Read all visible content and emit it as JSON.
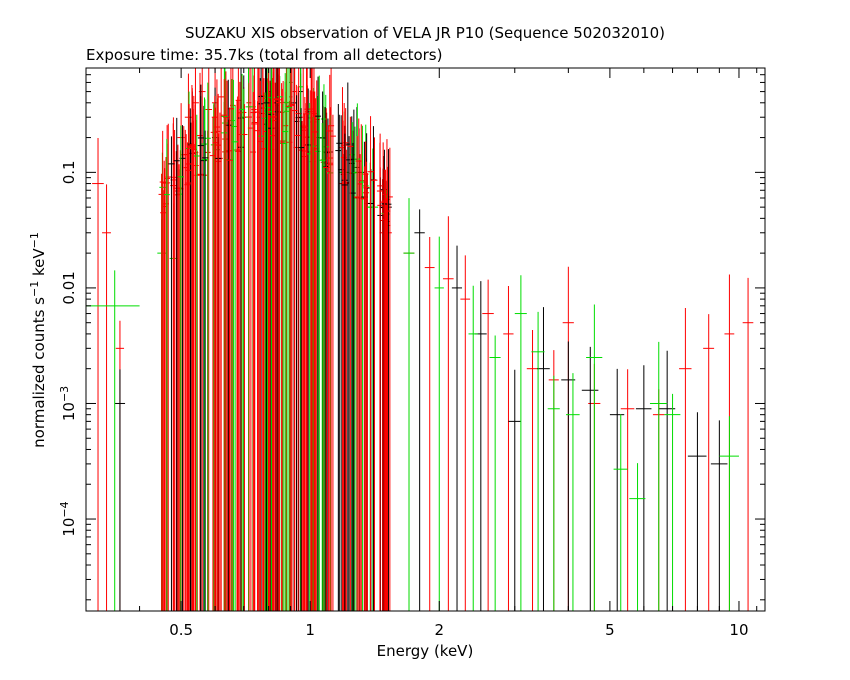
{
  "chart_data": {
    "type": "scatter",
    "title": "SUZAKU XIS observation of VELA JR P10 (Sequence 502032010)",
    "subtitle": "Exposure time: 35.7ks (total from all detectors)",
    "xlabel": "Energy (keV)",
    "ylabel_parts": {
      "base": "normalized counts s",
      "exp1": "−1",
      "mid": " keV",
      "exp2": "−1"
    },
    "x_scale": "log",
    "y_scale": "log",
    "xlim": [
      0.3,
      11.5
    ],
    "ylim": [
      1.6e-05,
      0.8
    ],
    "x_ticks": [
      {
        "value": 0.5,
        "label": "0.5"
      },
      {
        "value": 1,
        "label": "1"
      },
      {
        "value": 2,
        "label": "2"
      },
      {
        "value": 5,
        "label": "5"
      },
      {
        "value": 10,
        "label": "10"
      }
    ],
    "y_ticks": [
      {
        "value": 0.1,
        "base": "0.1",
        "exp": ""
      },
      {
        "value": 0.01,
        "base": "0.01",
        "exp": ""
      },
      {
        "value": 0.001,
        "base": "10",
        "exp": "−3"
      },
      {
        "value": 0.0001,
        "base": "10",
        "exp": "−4"
      }
    ],
    "legend": "none",
    "grid": false,
    "series": [
      {
        "color": "#ff0000",
        "x": [
          0.32,
          0.335,
          0.36,
          0.5,
          0.52,
          0.54,
          0.56,
          0.58,
          0.6,
          0.62,
          0.64,
          0.66,
          0.68,
          0.7,
          0.72,
          0.74,
          0.76,
          0.78,
          0.8,
          0.82,
          0.84,
          0.86,
          0.88,
          0.9,
          0.92,
          0.95,
          1.0,
          1.1,
          1.2,
          1.3,
          1.5,
          1.7,
          1.9,
          2.1,
          2.3,
          2.6,
          2.9,
          3.3,
          3.7,
          4.0,
          4.6,
          5.5,
          6.5,
          7.5,
          8.5,
          9.5,
          10.5
        ],
        "y": [
          0.08,
          0.03,
          0.003,
          0.2,
          0.3,
          0.4,
          0.5,
          0.35,
          0.4,
          0.45,
          0.3,
          0.38,
          0.42,
          0.33,
          0.4,
          0.35,
          0.3,
          0.36,
          0.42,
          0.3,
          0.38,
          0.33,
          0.4,
          0.45,
          0.5,
          0.3,
          0.15,
          0.12,
          0.08,
          0.06,
          0.03,
          0.02,
          0.015,
          0.012,
          0.008,
          0.006,
          0.004,
          0.002,
          0.0016,
          0.005,
          0.001,
          0.0009,
          0.0008,
          0.002,
          0.003,
          0.004,
          0.005
        ],
        "xerr": [
          0.01,
          0.008,
          0.008,
          0.01,
          0.01,
          0.01,
          0.01,
          0.01,
          0.01,
          0.01,
          0.01,
          0.01,
          0.01,
          0.01,
          0.01,
          0.01,
          0.01,
          0.01,
          0.01,
          0.01,
          0.01,
          0.01,
          0.01,
          0.01,
          0.01,
          0.015,
          0.02,
          0.03,
          0.03,
          0.04,
          0.05,
          0.05,
          0.05,
          0.06,
          0.06,
          0.08,
          0.08,
          0.1,
          0.1,
          0.12,
          0.15,
          0.2,
          0.2,
          0.25,
          0.25,
          0.25,
          0.3
        ]
      },
      {
        "color": "#000000",
        "x": [
          0.36,
          0.6,
          0.7,
          0.8,
          0.9,
          0.95,
          1.1,
          1.3,
          1.5,
          1.8,
          2.2,
          2.5,
          3.0,
          3.5,
          4.0,
          4.5,
          5.2,
          6.0,
          6.8,
          8.0,
          9.0
        ],
        "y": [
          0.001,
          0.2,
          0.3,
          0.5,
          0.6,
          0.5,
          0.15,
          0.1,
          0.05,
          0.03,
          0.01,
          0.004,
          0.0007,
          0.002,
          0.0016,
          0.0013,
          0.0008,
          0.0009,
          0.0009,
          0.00035,
          0.0003
        ],
        "xerr": [
          0.01,
          0.01,
          0.01,
          0.01,
          0.01,
          0.015,
          0.03,
          0.04,
          0.05,
          0.05,
          0.06,
          0.08,
          0.1,
          0.12,
          0.15,
          0.2,
          0.2,
          0.25,
          0.3,
          0.4,
          0.4
        ]
      },
      {
        "color": "#00dd00",
        "x": [
          0.35,
          0.45,
          0.48,
          0.7,
          0.8,
          0.9,
          0.95,
          1.05,
          1.2,
          1.4,
          1.7,
          2.0,
          2.4,
          2.7,
          3.1,
          3.4,
          3.7,
          4.1,
          4.6,
          5.3,
          5.8,
          6.5,
          7.0,
          9.5
        ],
        "y": [
          0.007,
          0.02,
          0.018,
          0.3,
          0.45,
          0.6,
          0.55,
          0.2,
          0.1,
          0.05,
          0.02,
          0.01,
          0.004,
          0.0025,
          0.006,
          0.0028,
          0.0009,
          0.0008,
          0.0025,
          0.00027,
          0.00015,
          0.001,
          0.0008,
          0.00035
        ],
        "xerr": [
          0.05,
          0.01,
          0.01,
          0.01,
          0.01,
          0.01,
          0.015,
          0.02,
          0.03,
          0.04,
          0.05,
          0.05,
          0.06,
          0.08,
          0.1,
          0.12,
          0.12,
          0.15,
          0.2,
          0.2,
          0.25,
          0.3,
          0.3,
          0.5
        ]
      }
    ]
  }
}
